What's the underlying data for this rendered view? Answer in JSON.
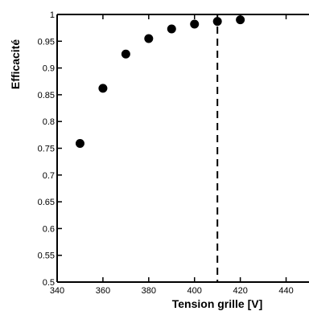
{
  "chart_data": {
    "type": "scatter",
    "xlabel": "Tension grille [V]",
    "ylabel": "Efficacité",
    "xlim": [
      340,
      450
    ],
    "ylim": [
      0.5,
      1.0
    ],
    "x_ticks": [
      340,
      360,
      380,
      400,
      420,
      440
    ],
    "y_ticks": [
      0.5,
      0.55,
      0.6,
      0.65,
      0.7,
      0.75,
      0.8,
      0.85,
      0.9,
      0.95,
      1
    ],
    "x_tick_labels": [
      "340",
      "360",
      "380",
      "400",
      "420",
      "440"
    ],
    "y_tick_labels": [
      "0.5",
      "0.55",
      "0.6",
      "0.65",
      "0.7",
      "0.75",
      "0.8",
      "0.85",
      "0.9",
      "0.95",
      "1"
    ],
    "points": [
      {
        "x": 350,
        "y": 0.759
      },
      {
        "x": 360,
        "y": 0.862
      },
      {
        "x": 370,
        "y": 0.926
      },
      {
        "x": 380,
        "y": 0.955
      },
      {
        "x": 390,
        "y": 0.973
      },
      {
        "x": 400,
        "y": 0.982
      },
      {
        "x": 410,
        "y": 0.987
      },
      {
        "x": 420,
        "y": 0.99
      }
    ],
    "vertical_reference_line": {
      "x": 410,
      "style": "dashed"
    },
    "grid": false,
    "marker_color": "#000000"
  }
}
